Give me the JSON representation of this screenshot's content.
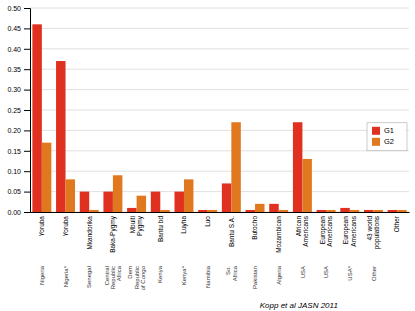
{
  "chart_data": {
    "type": "bar",
    "categories": [
      "Yoruba",
      "Yoruba",
      "Mkandorika",
      "Baka-Pygmy",
      "Mbuiti\nPygmy",
      "Bantu bd",
      "Luyha",
      "Luo",
      "Bantu S.A.",
      "Butocho",
      "Mozambican",
      "African\nAmericans",
      "European\nAmericans",
      "European\nAmericans",
      "43 world\npopulations",
      "Other"
    ],
    "series": [
      {
        "name": "G1",
        "color": "#e03020",
        "values": [
          0.46,
          0.37,
          0.05,
          0.05,
          0.01,
          0.05,
          0.05,
          0.005,
          0.07,
          0.005,
          0.02,
          0.22,
          0.005,
          0.01,
          0.005,
          0.005
        ]
      },
      {
        "name": "G2",
        "color": "#e07820",
        "values": [
          0.17,
          0.08,
          0.005,
          0.09,
          0.04,
          0.005,
          0.08,
          0.005,
          0.22,
          0.02,
          0.005,
          0.13,
          0.005,
          0.005,
          0.005,
          0.005
        ]
      }
    ],
    "ylim": [
      0,
      0.5
    ],
    "yticks": [
      {
        "value": 0,
        "label": "0.00"
      },
      {
        "value": 0.05,
        "label": "0.05"
      },
      {
        "value": 0.1,
        "label": "0.10"
      },
      {
        "value": 0.15,
        "label": "0.15"
      },
      {
        "value": 0.2,
        "label": "0.20"
      },
      {
        "value": 0.25,
        "label": "0.25"
      },
      {
        "value": 0.3,
        "label": "0.30"
      },
      {
        "value": 0.35,
        "label": "0.35"
      },
      {
        "value": 0.4,
        "label": "0.40"
      },
      {
        "value": 0.45,
        "label": "0.45"
      },
      {
        "value": 0.5,
        "label": "0.50"
      }
    ],
    "grid": true,
    "legend": "lower right",
    "annotations": {
      "country_labels": [
        "Nigeria",
        "Nigeria*",
        "Senegal",
        "Central\nRepublic\nAfrica",
        "Dem\nRepublic\nof Congo",
        "Kenya",
        "Kenya*",
        "Namibia",
        "So.\nAfrica",
        "Pakistan",
        "Algeria",
        "USA",
        "USA",
        "USA*",
        "Other"
      ],
      "citation": "Kopp et al JASN 2011"
    }
  }
}
